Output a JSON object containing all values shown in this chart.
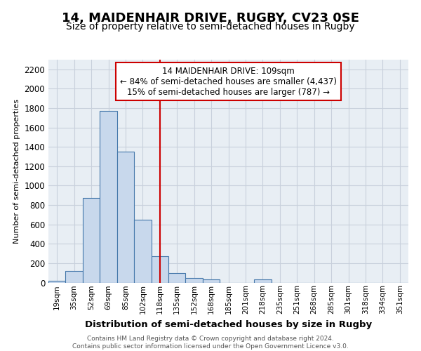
{
  "title": "14, MAIDENHAIR DRIVE, RUGBY, CV23 0SE",
  "subtitle": "Size of property relative to semi-detached houses in Rugby",
  "xlabel": "Distribution of semi-detached houses by size in Rugby",
  "ylabel": "Number of semi-detached properties",
  "footer": "Contains HM Land Registry data © Crown copyright and database right 2024.\nContains public sector information licensed under the Open Government Licence v3.0.",
  "categories": [
    "19sqm",
    "35sqm",
    "52sqm",
    "69sqm",
    "85sqm",
    "102sqm",
    "118sqm",
    "135sqm",
    "152sqm",
    "168sqm",
    "185sqm",
    "201sqm",
    "218sqm",
    "235sqm",
    "251sqm",
    "268sqm",
    "285sqm",
    "301sqm",
    "318sqm",
    "334sqm",
    "351sqm"
  ],
  "values": [
    15,
    120,
    870,
    1770,
    1350,
    650,
    270,
    100,
    50,
    35,
    0,
    0,
    30,
    0,
    0,
    0,
    0,
    0,
    0,
    0,
    0
  ],
  "bar_color": "#c8d8ec",
  "bar_edge_color": "#4477aa",
  "property_label_line1": "14 MAIDENHAIR DRIVE: 109sqm",
  "property_label_line2": "← 84% of semi-detached houses are smaller (4,437)",
  "property_label_line3": "15% of semi-detached houses are larger (787) →",
  "vline_color": "#cc0000",
  "annotation_box_color": "#cc0000",
  "ylim": [
    0,
    2300
  ],
  "yticks": [
    0,
    200,
    400,
    600,
    800,
    1000,
    1200,
    1400,
    1600,
    1800,
    2000,
    2200
  ],
  "grid_color": "#c8d0dc",
  "bg_color": "#e8eef4",
  "title_fontsize": 13,
  "subtitle_fontsize": 10,
  "vline_x_index": 6.0
}
